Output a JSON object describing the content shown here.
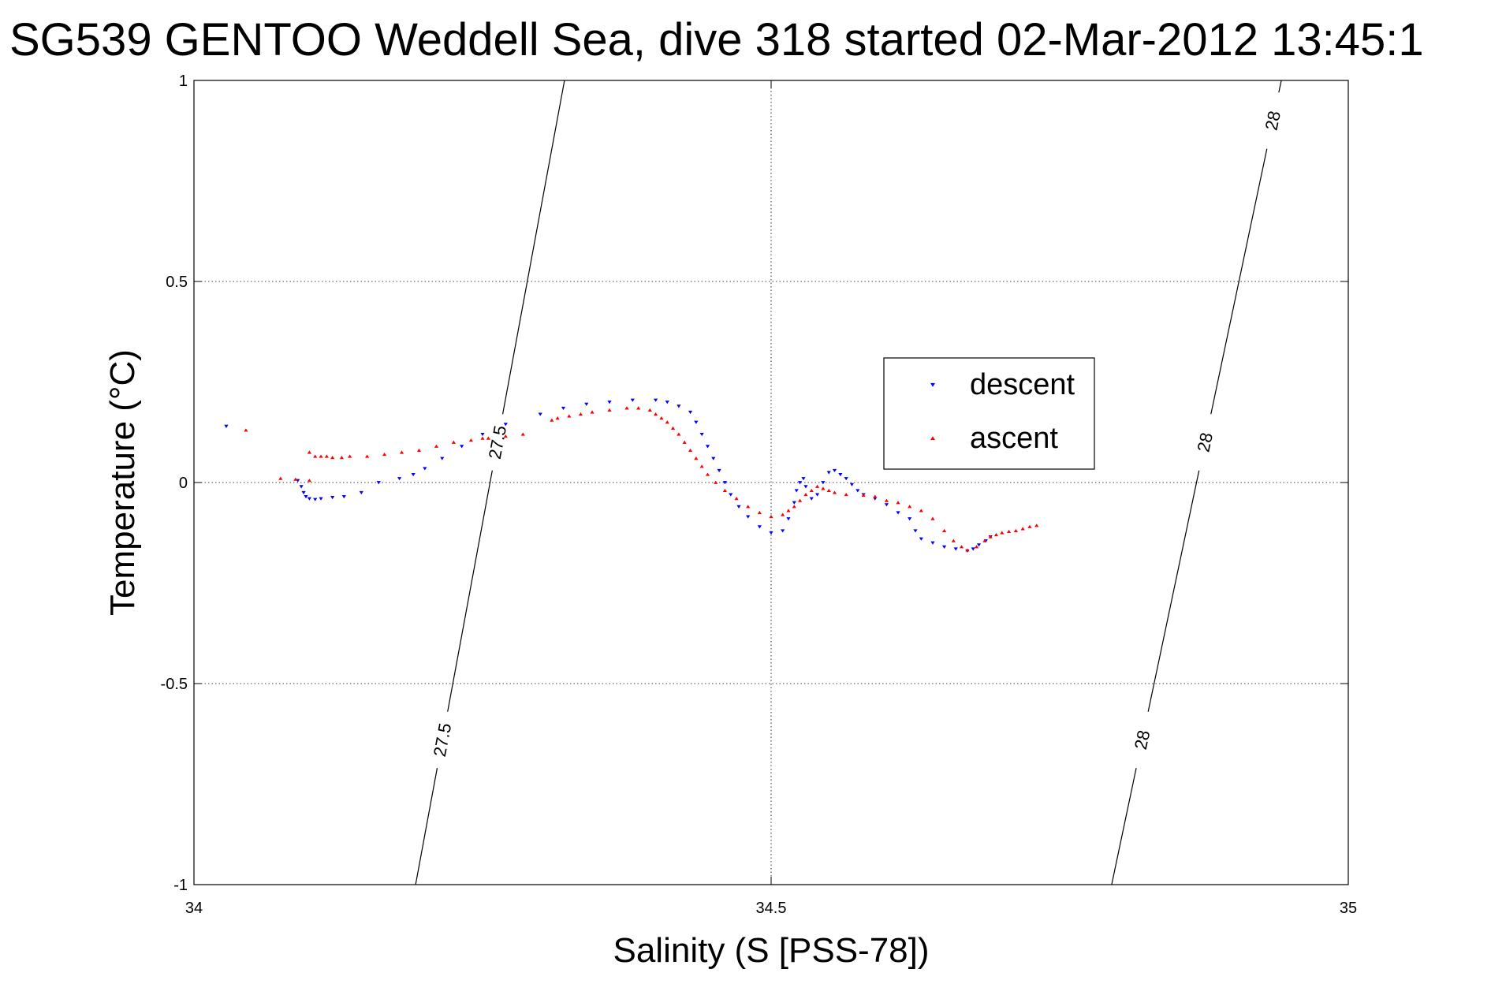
{
  "chart_data": {
    "type": "scatter",
    "title": "SG539 GENTOO Weddell Sea, dive 318 started 02-Mar-2012 13:45:1",
    "xlabel": "Salinity (S [PSS-78])",
    "ylabel": "Temperature (°C)",
    "xlim": [
      34,
      35
    ],
    "ylim": [
      -1,
      1
    ],
    "xticks": [
      34,
      34.5,
      35
    ],
    "xtick_labels": [
      "34",
      "34.5",
      "35"
    ],
    "yticks": [
      -1,
      -0.5,
      0,
      0.5,
      1
    ],
    "ytick_labels": [
      "-1",
      "-0.5",
      "0",
      "0.5",
      "1"
    ],
    "grid": true,
    "legend_position": "upper-right",
    "density_contours": [
      {
        "level": "27.5",
        "points": [
          [
            34.192,
            -1.0
          ],
          [
            34.321,
            1.0
          ]
        ],
        "labels": [
          "27.5",
          "27.5"
        ]
      },
      {
        "level": "28",
        "points": [
          [
            34.795,
            -1.0
          ],
          [
            34.942,
            1.0
          ]
        ],
        "labels": [
          "28",
          "28",
          "28"
        ]
      }
    ],
    "series": [
      {
        "name": "descent",
        "color": "#0000ff",
        "marker": "triangle-down",
        "points": [
          [
            34.028,
            0.14
          ],
          [
            34.09,
            0.005
          ],
          [
            34.093,
            -0.01
          ],
          [
            34.095,
            -0.025
          ],
          [
            34.097,
            -0.035
          ],
          [
            34.1,
            -0.04
          ],
          [
            34.105,
            -0.042
          ],
          [
            34.11,
            -0.04
          ],
          [
            34.12,
            -0.037
          ],
          [
            34.13,
            -0.035
          ],
          [
            34.145,
            -0.025
          ],
          [
            34.16,
            0.0
          ],
          [
            34.178,
            0.01
          ],
          [
            34.19,
            0.02
          ],
          [
            34.2,
            0.035
          ],
          [
            34.215,
            0.06
          ],
          [
            34.232,
            0.09
          ],
          [
            34.25,
            0.12
          ],
          [
            34.27,
            0.145
          ],
          [
            34.3,
            0.17
          ],
          [
            34.32,
            0.185
          ],
          [
            34.34,
            0.195
          ],
          [
            34.36,
            0.2
          ],
          [
            34.38,
            0.205
          ],
          [
            34.4,
            0.205
          ],
          [
            34.41,
            0.2
          ],
          [
            34.42,
            0.19
          ],
          [
            34.43,
            0.175
          ],
          [
            34.435,
            0.15
          ],
          [
            34.44,
            0.12
          ],
          [
            34.445,
            0.09
          ],
          [
            34.45,
            0.06
          ],
          [
            34.455,
            0.03
          ],
          [
            34.46,
            0.0
          ],
          [
            34.465,
            -0.03
          ],
          [
            34.472,
            -0.06
          ],
          [
            34.48,
            -0.085
          ],
          [
            34.49,
            -0.11
          ],
          [
            34.5,
            -0.125
          ],
          [
            34.51,
            -0.12
          ],
          [
            34.515,
            -0.09
          ],
          [
            34.52,
            -0.05
          ],
          [
            34.522,
            -0.02
          ],
          [
            34.525,
            0.0
          ],
          [
            34.528,
            0.01
          ],
          [
            34.53,
            -0.01
          ],
          [
            34.535,
            -0.04
          ],
          [
            34.54,
            -0.03
          ],
          [
            34.545,
            0.0
          ],
          [
            34.55,
            0.025
          ],
          [
            34.555,
            0.03
          ],
          [
            34.56,
            0.02
          ],
          [
            34.565,
            0.01
          ],
          [
            34.57,
            -0.005
          ],
          [
            34.575,
            -0.02
          ],
          [
            34.58,
            -0.03
          ],
          [
            34.59,
            -0.04
          ],
          [
            34.6,
            -0.055
          ],
          [
            34.61,
            -0.075
          ],
          [
            34.62,
            -0.09
          ],
          [
            34.625,
            -0.12
          ],
          [
            34.63,
            -0.14
          ],
          [
            34.64,
            -0.15
          ],
          [
            34.65,
            -0.16
          ],
          [
            34.66,
            -0.165
          ],
          [
            34.67,
            -0.17
          ],
          [
            34.675,
            -0.165
          ],
          [
            34.68,
            -0.155
          ],
          [
            34.686,
            -0.145
          ],
          [
            34.69,
            -0.135
          ]
        ]
      },
      {
        "name": "ascent",
        "color": "#ff0000",
        "marker": "triangle-up",
        "points": [
          [
            34.045,
            0.13
          ],
          [
            34.075,
            0.01
          ],
          [
            34.088,
            0.008
          ],
          [
            34.1,
            0.005
          ],
          [
            34.1,
            0.075
          ],
          [
            34.105,
            0.065
          ],
          [
            34.11,
            0.065
          ],
          [
            34.115,
            0.065
          ],
          [
            34.12,
            0.062
          ],
          [
            34.128,
            0.062
          ],
          [
            34.135,
            0.065
          ],
          [
            34.15,
            0.065
          ],
          [
            34.165,
            0.07
          ],
          [
            34.18,
            0.075
          ],
          [
            34.195,
            0.08
          ],
          [
            34.21,
            0.09
          ],
          [
            34.225,
            0.1
          ],
          [
            34.24,
            0.105
          ],
          [
            34.255,
            0.11
          ],
          [
            34.27,
            0.115
          ],
          [
            34.285,
            0.12
          ],
          [
            34.25,
            0.11
          ],
          [
            34.31,
            0.155
          ],
          [
            34.315,
            0.16
          ],
          [
            34.325,
            0.165
          ],
          [
            34.335,
            0.17
          ],
          [
            34.345,
            0.175
          ],
          [
            34.36,
            0.18
          ],
          [
            34.375,
            0.185
          ],
          [
            34.385,
            0.185
          ],
          [
            34.395,
            0.18
          ],
          [
            34.4,
            0.17
          ],
          [
            34.405,
            0.16
          ],
          [
            34.41,
            0.15
          ],
          [
            34.415,
            0.135
          ],
          [
            34.42,
            0.12
          ],
          [
            34.425,
            0.1
          ],
          [
            34.43,
            0.08
          ],
          [
            34.435,
            0.06
          ],
          [
            34.44,
            0.04
          ],
          [
            34.445,
            0.02
          ],
          [
            34.452,
            0.0
          ],
          [
            34.46,
            -0.02
          ],
          [
            34.47,
            -0.04
          ],
          [
            34.48,
            -0.06
          ],
          [
            34.49,
            -0.075
          ],
          [
            34.5,
            -0.085
          ],
          [
            34.51,
            -0.08
          ],
          [
            34.515,
            -0.07
          ],
          [
            34.52,
            -0.06
          ],
          [
            34.525,
            -0.045
          ],
          [
            34.53,
            -0.03
          ],
          [
            34.535,
            -0.02
          ],
          [
            34.54,
            -0.01
          ],
          [
            34.545,
            -0.015
          ],
          [
            34.55,
            -0.02
          ],
          [
            34.555,
            -0.025
          ],
          [
            34.565,
            -0.03
          ],
          [
            34.58,
            -0.032
          ],
          [
            34.59,
            -0.035
          ],
          [
            34.6,
            -0.045
          ],
          [
            34.61,
            -0.05
          ],
          [
            34.62,
            -0.06
          ],
          [
            34.63,
            -0.07
          ],
          [
            34.64,
            -0.09
          ],
          [
            34.65,
            -0.12
          ],
          [
            34.658,
            -0.145
          ],
          [
            34.665,
            -0.16
          ],
          [
            34.67,
            -0.168
          ],
          [
            34.678,
            -0.16
          ],
          [
            34.685,
            -0.145
          ],
          [
            34.69,
            -0.135
          ],
          [
            34.695,
            -0.13
          ],
          [
            34.7,
            -0.125
          ],
          [
            34.706,
            -0.122
          ],
          [
            34.712,
            -0.12
          ],
          [
            34.718,
            -0.115
          ],
          [
            34.724,
            -0.11
          ],
          [
            34.73,
            -0.107
          ]
        ]
      }
    ]
  }
}
